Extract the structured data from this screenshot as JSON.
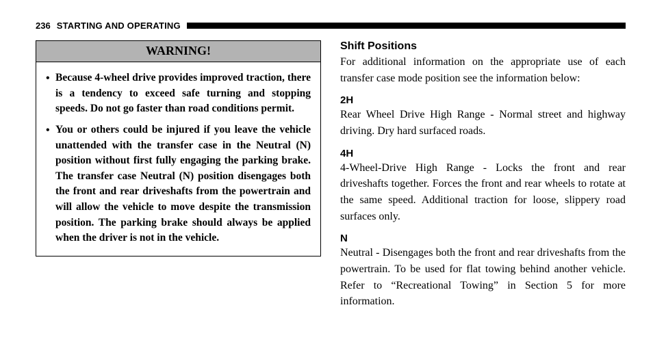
{
  "header": {
    "page_number": "236",
    "section": "STARTING AND OPERATING"
  },
  "left": {
    "warning_title": "WARNING!",
    "bullets": [
      "Because 4-wheel drive provides improved trac­tion, there is a tendency to exceed safe turning and stopping speeds. Do not go faster than road con­ditions permit.",
      "You or others could be injured if you leave the vehicle unattended with the transfer case in the Neutral (N) position without first fully engaging the parking brake. The transfer case Neutral (N) position disengages both the front and rear drive­shafts from the powertrain and will allow the vehicle to move despite the transmission position. The parking brake should always be applied when the driver is not in the vehicle."
    ]
  },
  "right": {
    "heading": "Shift Positions",
    "intro": "For additional information on the appropriate use of each transfer case mode position see the information below:",
    "modes": [
      {
        "label": "2H",
        "text": "Rear Wheel Drive High Range - Normal street and highway driving. Dry hard surfaced roads."
      },
      {
        "label": "4H",
        "text": "4-Wheel-Drive High Range - Locks the front and rear driveshafts together. Forces the front and rear wheels to rotate at the same speed. Additional traction for loose, slippery road surfaces only."
      },
      {
        "label": "N",
        "text": "Neutral - Disengages both the front and rear driveshafts from the powertrain. To be used for flat towing behind another vehicle. Refer to “Recreational Towing” in Sec­tion 5 for more information."
      }
    ]
  },
  "style": {
    "page_bg": "#ffffff",
    "text_color": "#000000",
    "warning_header_bg": "#b3b3b3",
    "header_bar_color": "#000000",
    "body_font": "Georgia, Times New Roman, serif",
    "heading_font": "Arial, Helvetica, sans-serif",
    "body_fontsize_pt": 12,
    "heading_fontsize_pt": 12,
    "warning_title_fontsize_pt": 13,
    "line_height": 1.48
  }
}
